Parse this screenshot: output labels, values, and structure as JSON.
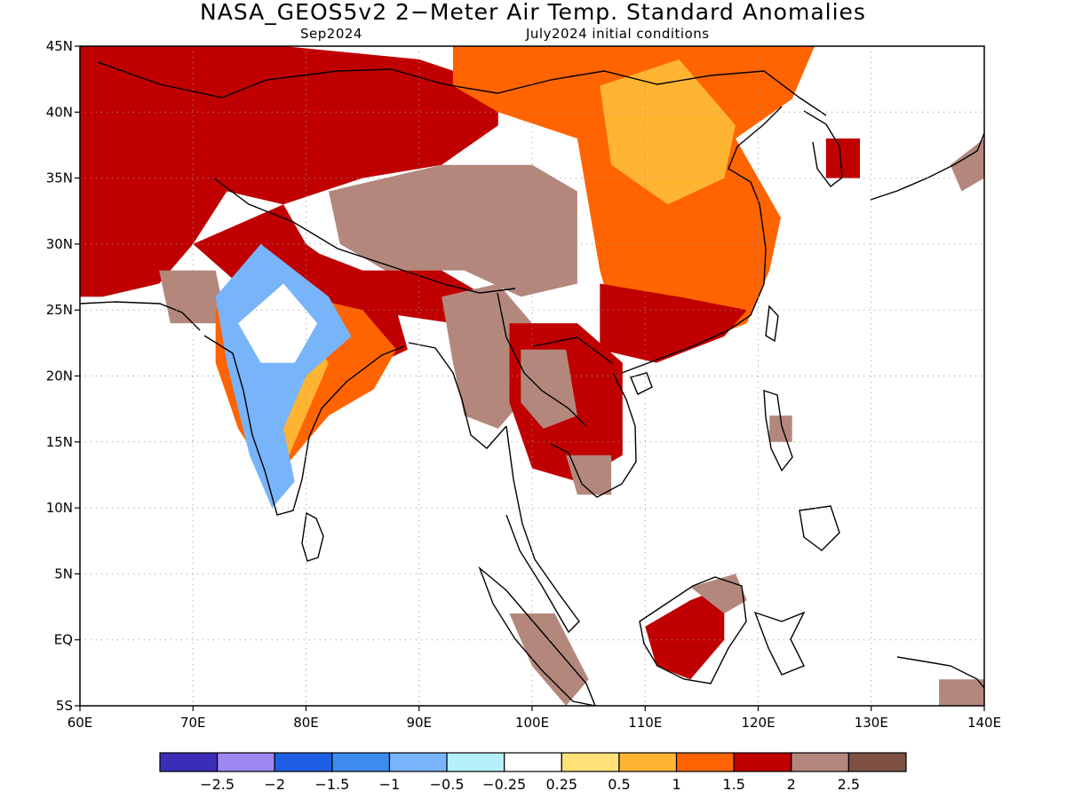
{
  "title": "NASA_GEOS5v2 2−Meter Air Temp. Standard Anomalies",
  "subtitle_left": "Sep2024",
  "subtitle_right": "July2024 initial conditions",
  "map": {
    "lon_range": [
      60,
      140
    ],
    "lat_range": [
      -5,
      45
    ],
    "lat_ticks": [
      {
        "value": 45,
        "label": "45N"
      },
      {
        "value": 40,
        "label": "40N"
      },
      {
        "value": 35,
        "label": "35N"
      },
      {
        "value": 30,
        "label": "30N"
      },
      {
        "value": 25,
        "label": "25N"
      },
      {
        "value": 20,
        "label": "20N"
      },
      {
        "value": 15,
        "label": "15N"
      },
      {
        "value": 10,
        "label": "10N"
      },
      {
        "value": 5,
        "label": "5N"
      },
      {
        "value": 0,
        "label": "EQ"
      },
      {
        "value": -5,
        "label": "5S"
      }
    ],
    "lon_ticks": [
      {
        "value": 60,
        "label": "60E"
      },
      {
        "value": 70,
        "label": "70E"
      },
      {
        "value": 80,
        "label": "80E"
      },
      {
        "value": 90,
        "label": "90E"
      },
      {
        "value": 100,
        "label": "100E"
      },
      {
        "value": 110,
        "label": "110E"
      },
      {
        "value": 120,
        "label": "120E"
      },
      {
        "value": 130,
        "label": "130E"
      },
      {
        "value": 140,
        "label": "140E"
      }
    ],
    "grid": "dotted",
    "anomaly_regions": [
      {
        "name": "central-asia",
        "level": 1.75,
        "points": [
          [
            60,
            45
          ],
          [
            78,
            45
          ],
          [
            90,
            44
          ],
          [
            97,
            42
          ],
          [
            97,
            39
          ],
          [
            92,
            36
          ],
          [
            85,
            35
          ],
          [
            78,
            33
          ],
          [
            73,
            34
          ],
          [
            70,
            30
          ],
          [
            67,
            27
          ],
          [
            62,
            26
          ],
          [
            60,
            26
          ]
        ]
      },
      {
        "name": "mongolia-north-china",
        "level": 1.25,
        "points": [
          [
            93,
            45
          ],
          [
            125,
            45
          ],
          [
            123,
            41
          ],
          [
            118,
            38
          ],
          [
            112,
            37
          ],
          [
            104,
            38
          ],
          [
            97,
            40
          ],
          [
            93,
            42
          ]
        ]
      },
      {
        "name": "east-china",
        "level": 1.25,
        "points": [
          [
            104,
            38
          ],
          [
            118,
            38
          ],
          [
            122,
            32
          ],
          [
            121,
            28
          ],
          [
            119,
            24
          ],
          [
            113,
            22
          ],
          [
            108,
            22
          ],
          [
            106,
            28
          ]
        ]
      },
      {
        "name": "north-china-plain",
        "level": 0.75,
        "points": [
          [
            106,
            42
          ],
          [
            113,
            44
          ],
          [
            118,
            39
          ],
          [
            117,
            35
          ],
          [
            112,
            33
          ],
          [
            107,
            36
          ]
        ]
      },
      {
        "name": "south-china-band",
        "level": 1.75,
        "points": [
          [
            106,
            27
          ],
          [
            113,
            26
          ],
          [
            119,
            25
          ],
          [
            117,
            23
          ],
          [
            111,
            21
          ],
          [
            106,
            22
          ]
        ]
      },
      {
        "name": "tibetan-plateau",
        "level": 2.25,
        "points": [
          [
            82,
            34
          ],
          [
            92,
            36
          ],
          [
            100,
            36
          ],
          [
            104,
            34
          ],
          [
            104,
            27
          ],
          [
            99,
            26
          ],
          [
            94,
            28
          ],
          [
            87,
            28
          ],
          [
            83,
            30
          ]
        ]
      },
      {
        "name": "himalaya-band",
        "level": 1.75,
        "points": [
          [
            79,
            30
          ],
          [
            85,
            28
          ],
          [
            92,
            28
          ],
          [
            96,
            26
          ],
          [
            93,
            24
          ],
          [
            85,
            25
          ],
          [
            79,
            27
          ]
        ]
      },
      {
        "name": "korea-red",
        "level": 1.75,
        "points": [
          [
            126,
            38
          ],
          [
            129,
            38
          ],
          [
            129,
            35
          ],
          [
            126,
            35
          ]
        ]
      },
      {
        "name": "india-north-red",
        "level": 1.75,
        "points": [
          [
            70,
            30
          ],
          [
            78,
            33
          ],
          [
            80,
            30
          ],
          [
            88,
            25
          ],
          [
            89,
            22
          ],
          [
            84,
            20
          ],
          [
            80,
            22
          ],
          [
            78,
            25
          ],
          [
            74,
            27
          ]
        ]
      },
      {
        "name": "pakistan-brown",
        "level": 2.25,
        "points": [
          [
            67,
            28
          ],
          [
            72,
            28
          ],
          [
            73,
            24
          ],
          [
            68,
            24
          ]
        ]
      },
      {
        "name": "india-orange",
        "level": 1.25,
        "points": [
          [
            72,
            25
          ],
          [
            75,
            27
          ],
          [
            80,
            26
          ],
          [
            85,
            25
          ],
          [
            88,
            22
          ],
          [
            86,
            19
          ],
          [
            82,
            17
          ],
          [
            79,
            14
          ],
          [
            77,
            12
          ],
          [
            74,
            16
          ],
          [
            72,
            21
          ]
        ]
      },
      {
        "name": "india-yellow",
        "level": 0.75,
        "points": [
          [
            74,
            23
          ],
          [
            79,
            24
          ],
          [
            82,
            21
          ],
          [
            80,
            17
          ],
          [
            78,
            13
          ],
          [
            75,
            16
          ]
        ]
      },
      {
        "name": "india-blue",
        "level": -0.75,
        "points": [
          [
            72,
            26
          ],
          [
            76,
            30
          ],
          [
            82,
            26
          ],
          [
            84,
            23
          ],
          [
            80,
            20
          ],
          [
            78,
            16
          ],
          [
            79,
            12
          ],
          [
            77,
            10
          ],
          [
            75,
            14
          ],
          [
            73,
            21
          ]
        ]
      },
      {
        "name": "india-white-core",
        "level": 0.0,
        "points": [
          [
            74,
            24
          ],
          [
            78,
            27
          ],
          [
            81,
            24
          ],
          [
            79,
            21
          ],
          [
            76,
            21
          ]
        ]
      },
      {
        "name": "myanmar-brown",
        "level": 2.25,
        "points": [
          [
            92,
            26
          ],
          [
            97,
            27
          ],
          [
            100,
            24
          ],
          [
            99,
            18
          ],
          [
            97,
            16
          ],
          [
            94,
            17
          ],
          [
            93,
            21
          ]
        ]
      },
      {
        "name": "indochina-red",
        "level": 1.75,
        "points": [
          [
            98,
            24
          ],
          [
            104,
            24
          ],
          [
            108,
            21
          ],
          [
            108,
            14
          ],
          [
            104,
            12
          ],
          [
            100,
            13
          ],
          [
            98,
            18
          ]
        ]
      },
      {
        "name": "indochina-brown",
        "level": 2.25,
        "points": [
          [
            99,
            22
          ],
          [
            103,
            22
          ],
          [
            104,
            17
          ],
          [
            101,
            16
          ],
          [
            99,
            18
          ]
        ]
      },
      {
        "name": "cambodia-brown",
        "level": 2.25,
        "points": [
          [
            103,
            14
          ],
          [
            107,
            14
          ],
          [
            107,
            11
          ],
          [
            104,
            11
          ]
        ]
      },
      {
        "name": "borneo-red",
        "level": 1.75,
        "points": [
          [
            110,
            1
          ],
          [
            114,
            3
          ],
          [
            117,
            4
          ],
          [
            117,
            0
          ],
          [
            114,
            -3
          ],
          [
            111,
            -2
          ]
        ]
      },
      {
        "name": "borneo-brown",
        "level": 2.25,
        "points": [
          [
            114,
            4
          ],
          [
            118,
            5
          ],
          [
            119,
            3
          ],
          [
            117,
            2
          ]
        ]
      },
      {
        "name": "sumatra-brown",
        "level": 2.25,
        "points": [
          [
            98,
            2
          ],
          [
            102,
            2
          ],
          [
            105,
            -3
          ],
          [
            103,
            -5
          ],
          [
            100,
            -2
          ]
        ]
      },
      {
        "name": "philippines-brown",
        "level": 2.25,
        "points": [
          [
            121,
            17
          ],
          [
            123,
            17
          ],
          [
            123,
            15
          ],
          [
            121,
            15
          ]
        ]
      },
      {
        "name": "png-brown",
        "level": 2.25,
        "points": [
          [
            136,
            -3
          ],
          [
            140,
            -3
          ],
          [
            140,
            -5
          ],
          [
            136,
            -5
          ]
        ]
      },
      {
        "name": "japan-brown",
        "level": 2.25,
        "points": [
          [
            137,
            36
          ],
          [
            140,
            38
          ],
          [
            140,
            35
          ],
          [
            138,
            34
          ]
        ]
      }
    ]
  },
  "colorbar": {
    "colors": [
      "#3c2db9",
      "#9d87f0",
      "#1e5fe6",
      "#3c8cf0",
      "#78b4fa",
      "#b4f0fa",
      "#ffffff",
      "#ffe178",
      "#ffb432",
      "#ff6400",
      "#c00000",
      "#b4877d",
      "#7d5041"
    ],
    "labels": [
      "−2.5",
      "−2",
      "−1.5",
      "−1",
      "−0.5",
      "−0.25",
      "0.25",
      "0.5",
      "1",
      "1.5",
      "2",
      "2.5"
    ]
  }
}
